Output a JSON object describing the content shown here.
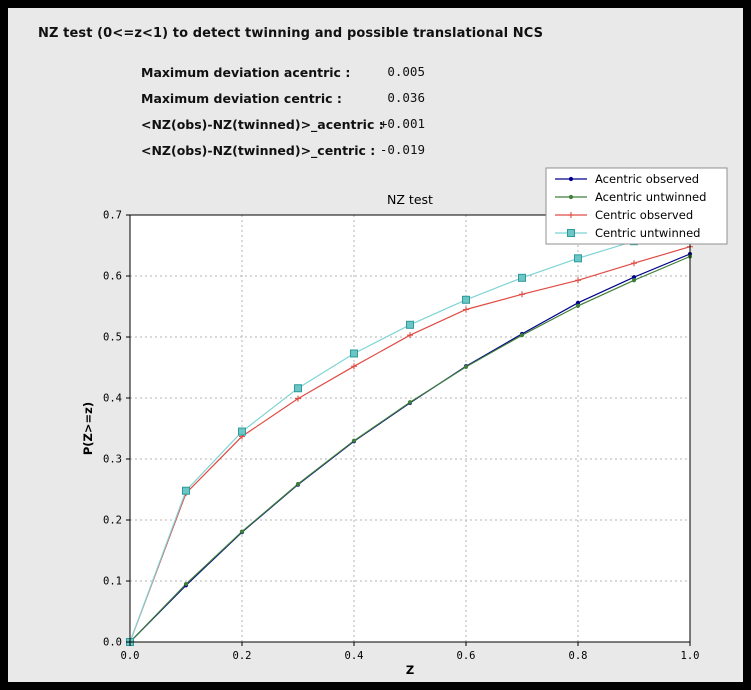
{
  "window": {
    "bg": "#000000",
    "panel_bg": "#e9e9e9"
  },
  "header": {
    "title": "NZ test (0<=z<1) to detect twinning and possible translational NCS"
  },
  "stats": {
    "rows": [
      {
        "label": "Maximum deviation acentric :",
        "value": "0.005"
      },
      {
        "label": "Maximum deviation centric :",
        "value": "0.036"
      },
      {
        "label": "<NZ(obs)-NZ(twinned)>_acentric :",
        "value": "+0.001"
      },
      {
        "label": "<NZ(obs)-NZ(twinned)>_centric :",
        "value": "-0.019"
      }
    ]
  },
  "chart_data": {
    "type": "line",
    "title": "NZ test",
    "xlabel": "Z",
    "ylabel": "P(Z>=z)",
    "xlim": [
      0.0,
      1.0
    ],
    "ylim": [
      0.0,
      0.7
    ],
    "xticks": [
      0.0,
      0.2,
      0.4,
      0.6,
      0.8,
      1.0
    ],
    "yticks": [
      0.0,
      0.1,
      0.2,
      0.3,
      0.4,
      0.5,
      0.6,
      0.7
    ],
    "grid": true,
    "grid_color": "#b3b3b3",
    "plot_bg": "#ffffff",
    "legend_position": "top-right",
    "x": [
      0.0,
      0.1,
      0.2,
      0.3,
      0.4,
      0.5,
      0.6,
      0.7,
      0.8,
      0.9,
      1.0
    ],
    "series": [
      {
        "name": "Acentric observed",
        "color": "#00008b",
        "marker": "dot",
        "values": [
          0.0,
          0.093,
          0.18,
          0.258,
          0.329,
          0.392,
          0.452,
          0.505,
          0.556,
          0.598,
          0.636
        ]
      },
      {
        "name": "Acentric untwinned",
        "color": "#3f7f3a",
        "marker": "dot",
        "values": [
          0.0,
          0.095,
          0.181,
          0.259,
          0.33,
          0.393,
          0.451,
          0.503,
          0.551,
          0.593,
          0.632
        ]
      },
      {
        "name": "Centric observed",
        "color": "#e04b44",
        "marker": "plus",
        "values": [
          0.0,
          0.244,
          0.337,
          0.399,
          0.452,
          0.503,
          0.545,
          0.57,
          0.593,
          0.621,
          0.648
        ]
      },
      {
        "name": "Centric untwinned",
        "color": "#7fd4d4",
        "marker": "square",
        "marker_fill": "#6cc6c6",
        "marker_stroke": "#2e9a9a",
        "values": [
          0.0,
          0.248,
          0.345,
          0.416,
          0.473,
          0.52,
          0.561,
          0.597,
          0.629,
          0.657,
          0.683
        ]
      }
    ]
  }
}
